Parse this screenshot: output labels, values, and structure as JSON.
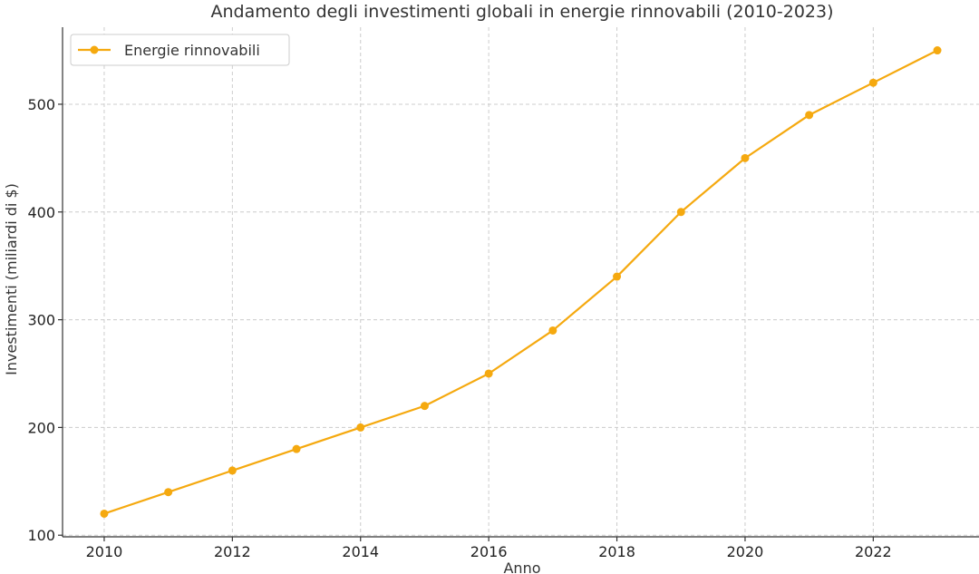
{
  "chart_data": {
    "type": "line",
    "title": "Andamento degli investimenti globali in energie rinnovabili (2010-2023)",
    "xlabel": "Anno",
    "ylabel": "Investimenti (miliardi di $)",
    "x": [
      2010,
      2011,
      2012,
      2013,
      2014,
      2015,
      2016,
      2017,
      2018,
      2019,
      2020,
      2021,
      2022,
      2023
    ],
    "series": [
      {
        "name": "Energie rinnovabili",
        "values": [
          120,
          140,
          160,
          180,
          200,
          220,
          250,
          290,
          340,
          400,
          450,
          490,
          520,
          550
        ],
        "color": "#f5a90f"
      }
    ],
    "xlim": [
      2009.35,
      2023.65
    ],
    "ylim": [
      98.5,
      571.5
    ],
    "xticks": [
      2010,
      2012,
      2014,
      2016,
      2018,
      2020,
      2022
    ],
    "yticks": [
      100,
      200,
      300,
      400,
      500
    ],
    "grid": true,
    "legend_position": "top-left"
  }
}
